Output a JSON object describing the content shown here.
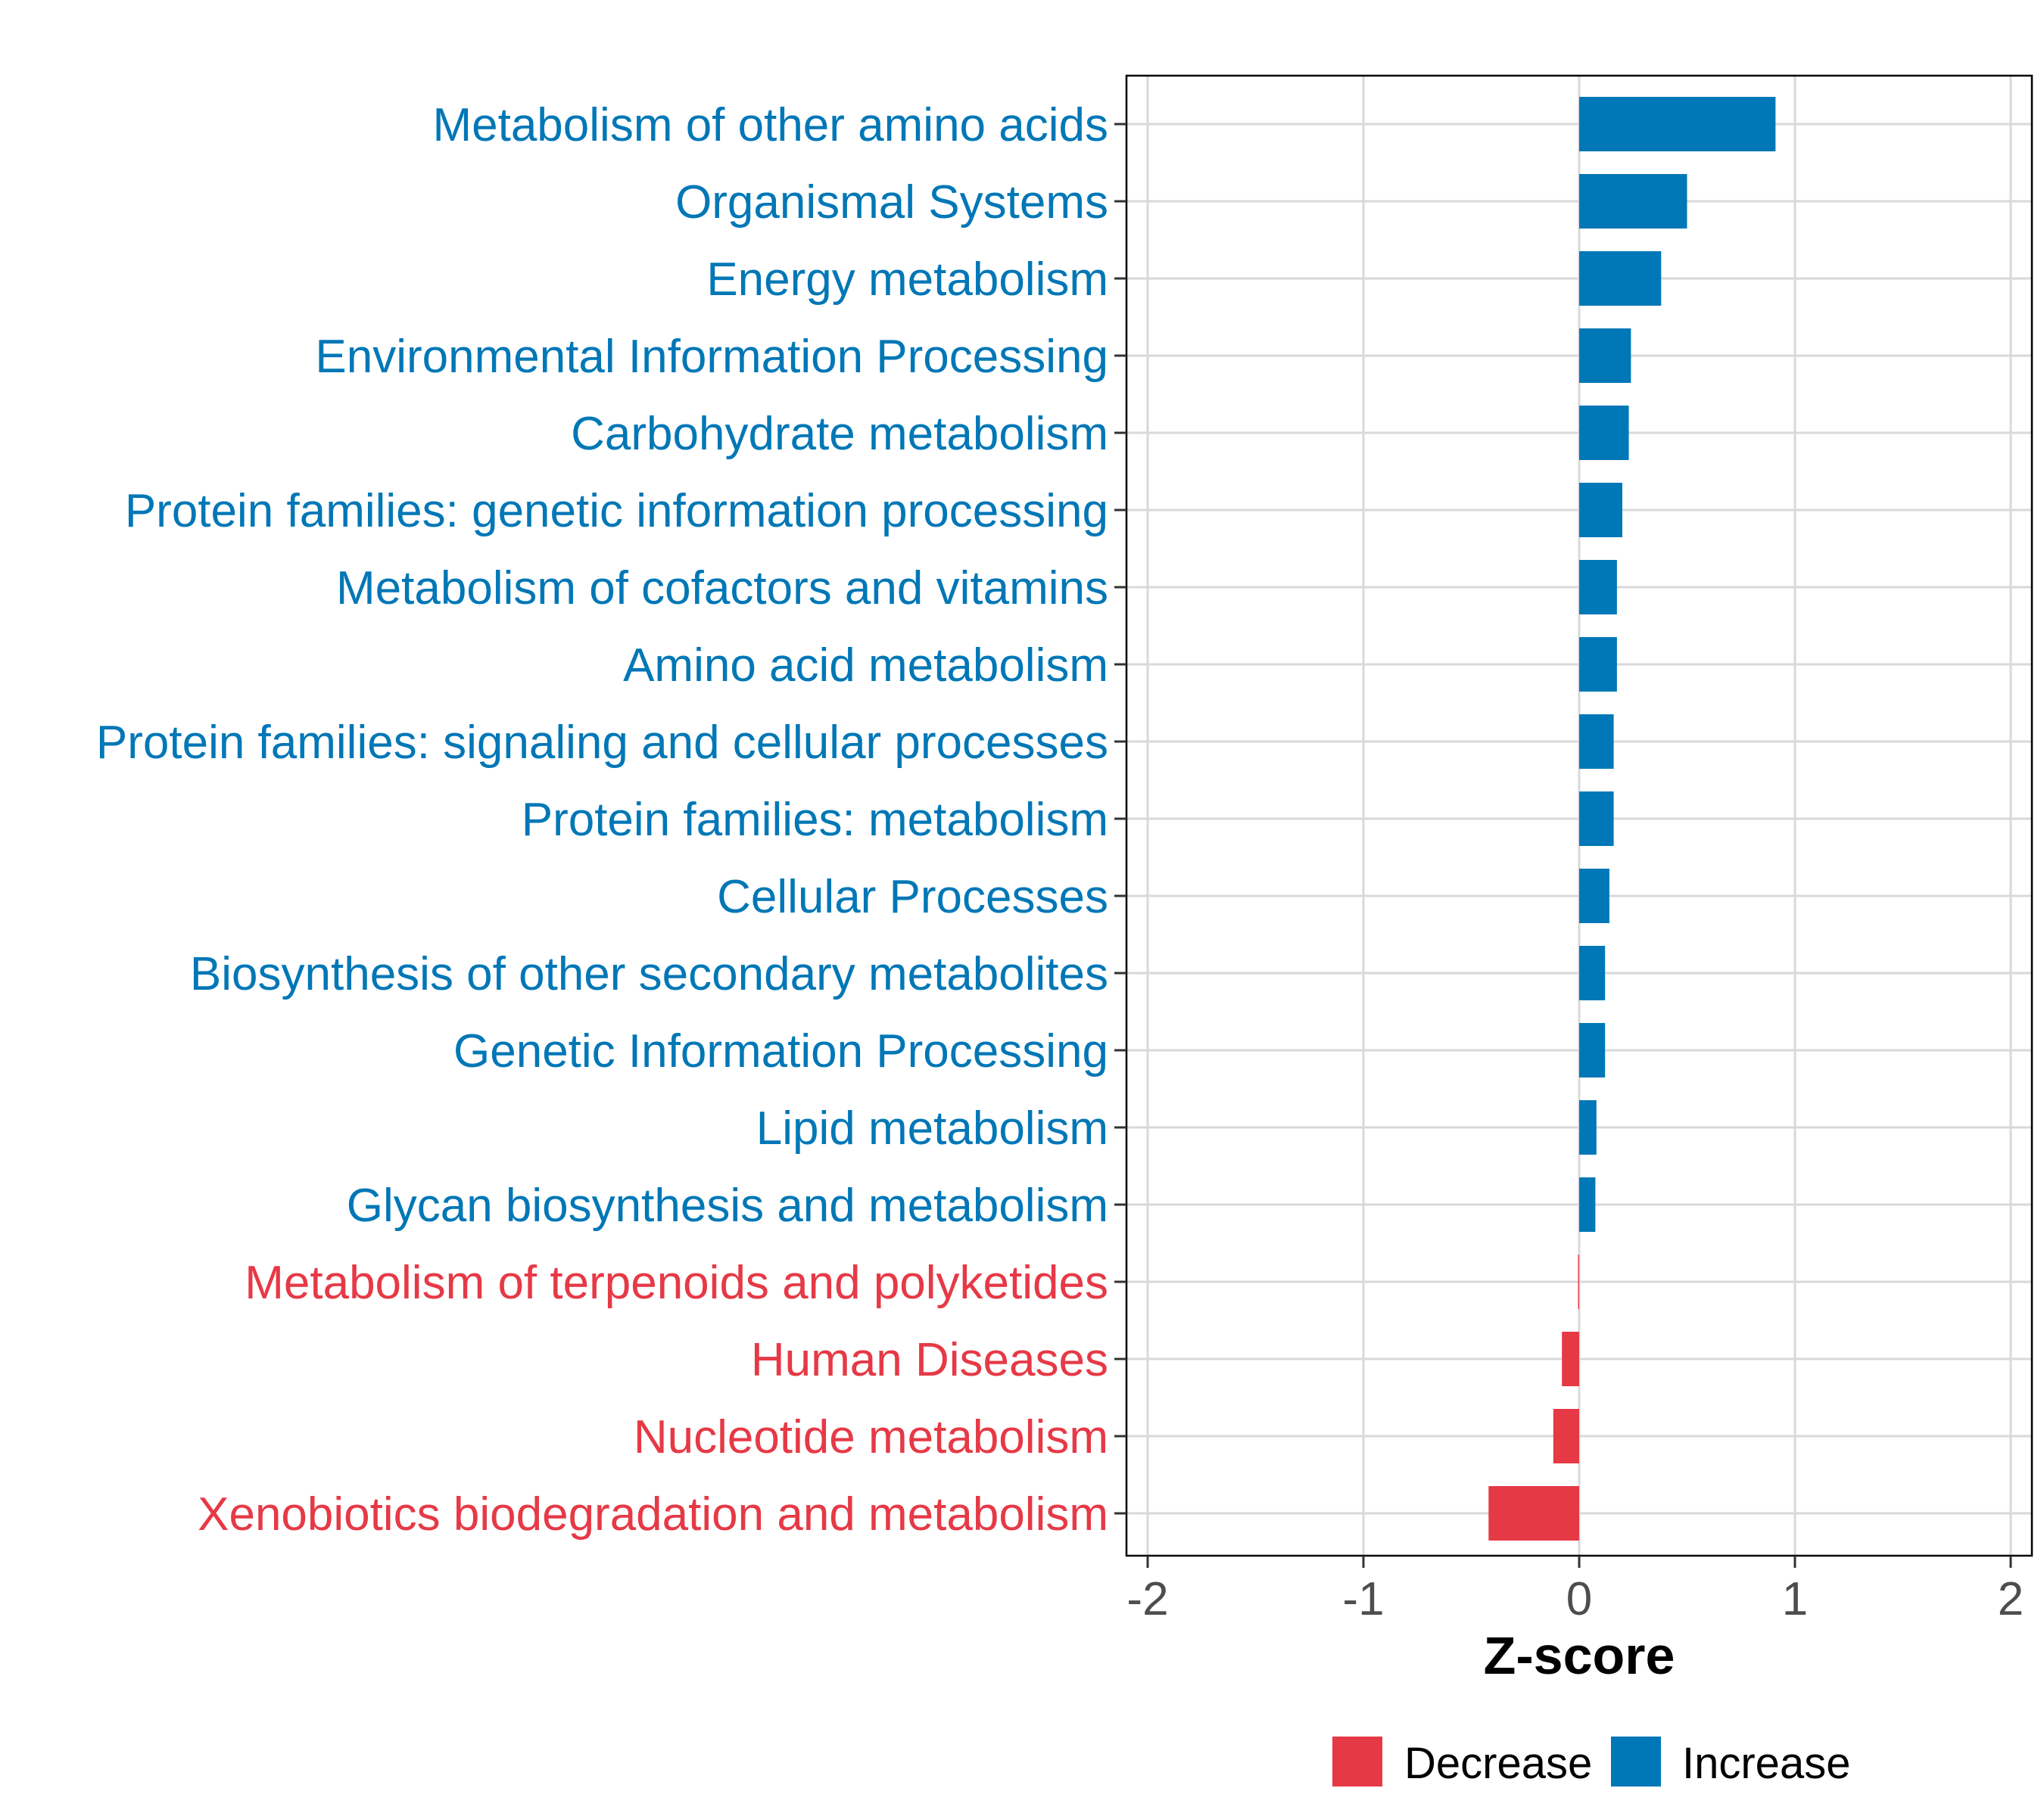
{
  "colors": {
    "decrease": "#E63946",
    "increase": "#0077B6",
    "grid": "#d9d9d9",
    "axis": "#000000"
  },
  "chart_data": {
    "type": "bar",
    "orientation": "horizontal",
    "xlabel": "Z-score",
    "ylabel": "",
    "xlim": [
      -2,
      2
    ],
    "xticks": [
      -2,
      -1,
      0,
      1,
      2
    ],
    "xtick_labels": [
      "-2",
      "-1",
      "0",
      "1",
      "2"
    ],
    "grid": true,
    "legend_position": "bottom",
    "legend": [
      {
        "key": "decrease",
        "label": "Decrease"
      },
      {
        "key": "increase",
        "label": "Increase"
      }
    ],
    "categories": [
      "Metabolism of other amino acids",
      "Organismal Systems",
      "Energy metabolism",
      "Environmental Information Processing",
      "Carbohydrate metabolism",
      "Protein families: genetic information processing",
      "Metabolism of cofactors and vitamins",
      "Amino acid metabolism",
      "Protein families: signaling and cellular processes",
      "Protein families: metabolism",
      "Cellular Processes",
      "Biosynthesis of other secondary metabolites",
      "Genetic Information Processing",
      "Lipid metabolism",
      "Glycan biosynthesis and metabolism",
      "Metabolism of terpenoids and polyketides",
      "Human Diseases",
      "Nucleotide metabolism",
      "Xenobiotics biodegradation and metabolism"
    ],
    "values": [
      0.91,
      0.5,
      0.38,
      0.24,
      0.23,
      0.2,
      0.175,
      0.175,
      0.16,
      0.16,
      0.14,
      0.12,
      0.12,
      0.08,
      0.075,
      -0.005,
      -0.08,
      -0.12,
      -0.42
    ],
    "groups": [
      "increase",
      "increase",
      "increase",
      "increase",
      "increase",
      "increase",
      "increase",
      "increase",
      "increase",
      "increase",
      "increase",
      "increase",
      "increase",
      "increase",
      "increase",
      "decrease",
      "decrease",
      "decrease",
      "decrease"
    ]
  }
}
